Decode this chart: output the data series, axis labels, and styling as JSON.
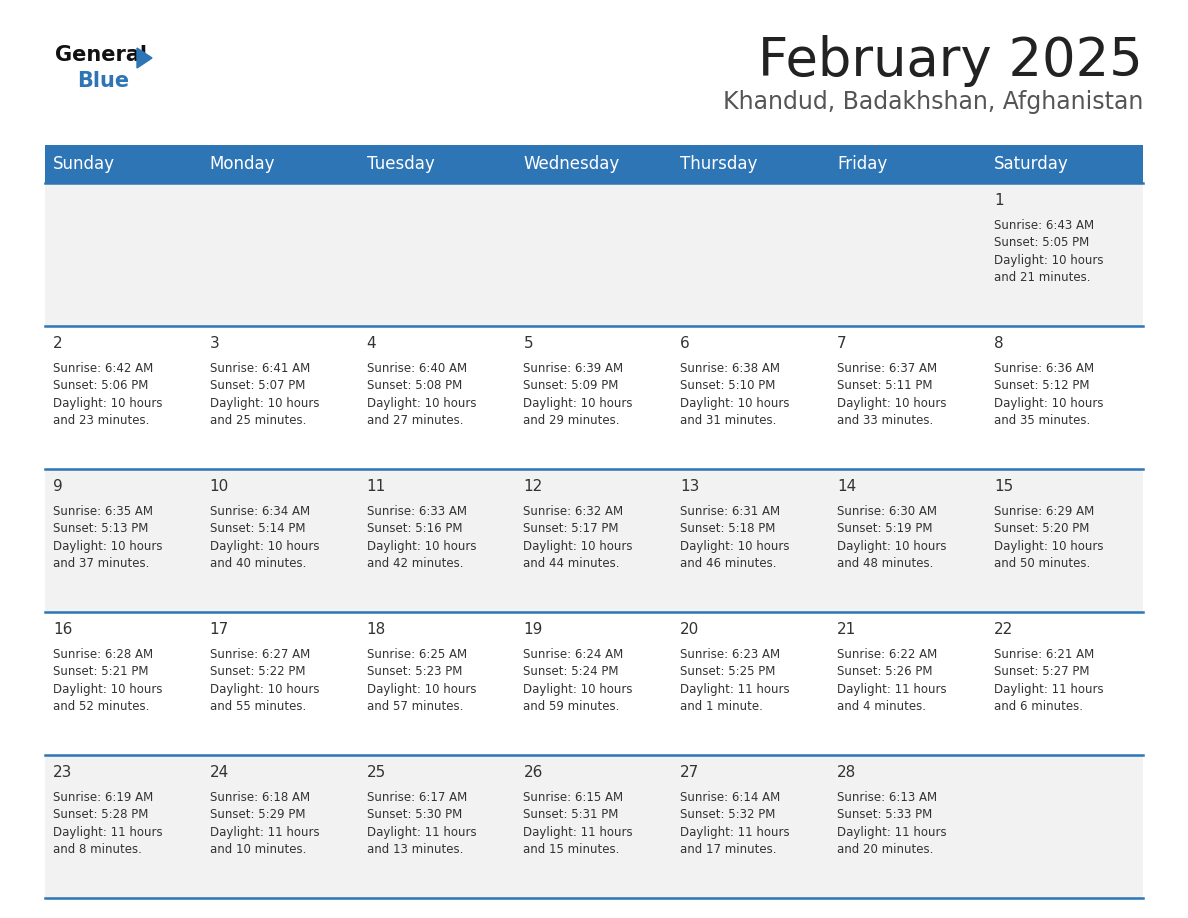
{
  "title": "February 2025",
  "subtitle": "Khandud, Badakhshan, Afghanistan",
  "header_bg": "#2E75B6",
  "header_text": "#FFFFFF",
  "row_bg_even": "#F2F2F2",
  "row_bg_odd": "#FFFFFF",
  "divider_color": "#2E75B6",
  "text_color": "#333333",
  "days_of_week": [
    "Sunday",
    "Monday",
    "Tuesday",
    "Wednesday",
    "Thursday",
    "Friday",
    "Saturday"
  ],
  "title_fontsize": 38,
  "subtitle_fontsize": 17,
  "header_fontsize": 12,
  "day_num_fontsize": 11,
  "cell_text_fontsize": 8.5,
  "calendar_data": [
    [
      null,
      null,
      null,
      null,
      null,
      null,
      {
        "day": "1",
        "sunrise": "6:43 AM",
        "sunset": "5:05 PM",
        "daylight": "10 hours\nand 21 minutes."
      }
    ],
    [
      {
        "day": "2",
        "sunrise": "6:42 AM",
        "sunset": "5:06 PM",
        "daylight": "10 hours\nand 23 minutes."
      },
      {
        "day": "3",
        "sunrise": "6:41 AM",
        "sunset": "5:07 PM",
        "daylight": "10 hours\nand 25 minutes."
      },
      {
        "day": "4",
        "sunrise": "6:40 AM",
        "sunset": "5:08 PM",
        "daylight": "10 hours\nand 27 minutes."
      },
      {
        "day": "5",
        "sunrise": "6:39 AM",
        "sunset": "5:09 PM",
        "daylight": "10 hours\nand 29 minutes."
      },
      {
        "day": "6",
        "sunrise": "6:38 AM",
        "sunset": "5:10 PM",
        "daylight": "10 hours\nand 31 minutes."
      },
      {
        "day": "7",
        "sunrise": "6:37 AM",
        "sunset": "5:11 PM",
        "daylight": "10 hours\nand 33 minutes."
      },
      {
        "day": "8",
        "sunrise": "6:36 AM",
        "sunset": "5:12 PM",
        "daylight": "10 hours\nand 35 minutes."
      }
    ],
    [
      {
        "day": "9",
        "sunrise": "6:35 AM",
        "sunset": "5:13 PM",
        "daylight": "10 hours\nand 37 minutes."
      },
      {
        "day": "10",
        "sunrise": "6:34 AM",
        "sunset": "5:14 PM",
        "daylight": "10 hours\nand 40 minutes."
      },
      {
        "day": "11",
        "sunrise": "6:33 AM",
        "sunset": "5:16 PM",
        "daylight": "10 hours\nand 42 minutes."
      },
      {
        "day": "12",
        "sunrise": "6:32 AM",
        "sunset": "5:17 PM",
        "daylight": "10 hours\nand 44 minutes."
      },
      {
        "day": "13",
        "sunrise": "6:31 AM",
        "sunset": "5:18 PM",
        "daylight": "10 hours\nand 46 minutes."
      },
      {
        "day": "14",
        "sunrise": "6:30 AM",
        "sunset": "5:19 PM",
        "daylight": "10 hours\nand 48 minutes."
      },
      {
        "day": "15",
        "sunrise": "6:29 AM",
        "sunset": "5:20 PM",
        "daylight": "10 hours\nand 50 minutes."
      }
    ],
    [
      {
        "day": "16",
        "sunrise": "6:28 AM",
        "sunset": "5:21 PM",
        "daylight": "10 hours\nand 52 minutes."
      },
      {
        "day": "17",
        "sunrise": "6:27 AM",
        "sunset": "5:22 PM",
        "daylight": "10 hours\nand 55 minutes."
      },
      {
        "day": "18",
        "sunrise": "6:25 AM",
        "sunset": "5:23 PM",
        "daylight": "10 hours\nand 57 minutes."
      },
      {
        "day": "19",
        "sunrise": "6:24 AM",
        "sunset": "5:24 PM",
        "daylight": "10 hours\nand 59 minutes."
      },
      {
        "day": "20",
        "sunrise": "6:23 AM",
        "sunset": "5:25 PM",
        "daylight": "11 hours\nand 1 minute."
      },
      {
        "day": "21",
        "sunrise": "6:22 AM",
        "sunset": "5:26 PM",
        "daylight": "11 hours\nand 4 minutes."
      },
      {
        "day": "22",
        "sunrise": "6:21 AM",
        "sunset": "5:27 PM",
        "daylight": "11 hours\nand 6 minutes."
      }
    ],
    [
      {
        "day": "23",
        "sunrise": "6:19 AM",
        "sunset": "5:28 PM",
        "daylight": "11 hours\nand 8 minutes."
      },
      {
        "day": "24",
        "sunrise": "6:18 AM",
        "sunset": "5:29 PM",
        "daylight": "11 hours\nand 10 minutes."
      },
      {
        "day": "25",
        "sunrise": "6:17 AM",
        "sunset": "5:30 PM",
        "daylight": "11 hours\nand 13 minutes."
      },
      {
        "day": "26",
        "sunrise": "6:15 AM",
        "sunset": "5:31 PM",
        "daylight": "11 hours\nand 15 minutes."
      },
      {
        "day": "27",
        "sunrise": "6:14 AM",
        "sunset": "5:32 PM",
        "daylight": "11 hours\nand 17 minutes."
      },
      {
        "day": "28",
        "sunrise": "6:13 AM",
        "sunset": "5:33 PM",
        "daylight": "11 hours\nand 20 minutes."
      },
      null
    ]
  ]
}
